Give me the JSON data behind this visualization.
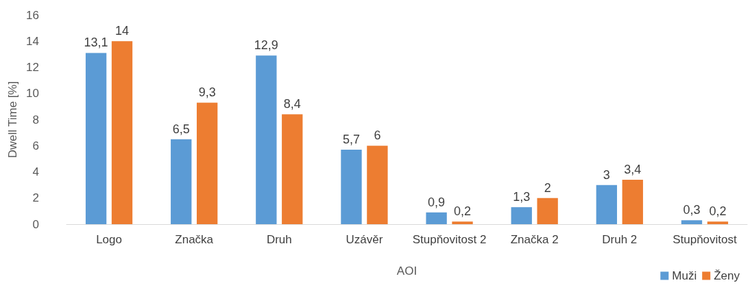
{
  "chart_data": {
    "type": "bar",
    "xlabel": "AOI",
    "ylabel": "Dwell Time [%]",
    "categories": [
      "Logo",
      "Značka",
      "Druh",
      "Uzávěr",
      "Stupňovitost 2",
      "Značka 2",
      "Druh 2",
      "Stupňovitost"
    ],
    "series": [
      {
        "name": "Muži",
        "color": "#5b9bd5",
        "values": [
          13.1,
          6.5,
          12.9,
          5.7,
          0.9,
          1.3,
          3,
          0.3
        ],
        "value_labels": [
          "13,1",
          "6,5",
          "12,9",
          "5,7",
          "0,9",
          "1,3",
          "3",
          "0,3"
        ]
      },
      {
        "name": "Ženy",
        "color": "#ed7d31",
        "values": [
          14,
          9.3,
          8.4,
          6,
          0.2,
          2,
          3.4,
          0.2
        ],
        "value_labels": [
          "14",
          "9,3",
          "8,4",
          "6",
          "0,2",
          "2",
          "3,4",
          "0,2"
        ]
      }
    ],
    "ylim": [
      0,
      16
    ],
    "yticks": [
      0,
      2,
      4,
      6,
      8,
      10,
      12,
      14,
      16
    ],
    "grid": false,
    "legend": "bottom right"
  }
}
